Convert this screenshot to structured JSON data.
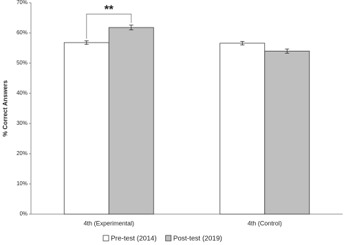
{
  "chart_data": {
    "type": "bar",
    "y_label": "% Correct Answers",
    "categories": [
      "4th (Experimental)",
      "4th (Control)"
    ],
    "series": [
      {
        "name": "Pre-test (2014)",
        "color": "#ffffff",
        "values": [
          56.8,
          56.6
        ],
        "errors": [
          0.6,
          0.6
        ]
      },
      {
        "name": "Post-test (2019)",
        "color": "#bfbfbf",
        "values": [
          61.8,
          54.0
        ],
        "errors": [
          0.8,
          0.7
        ]
      }
    ],
    "ylim": [
      0,
      70
    ],
    "yticks": [
      {
        "value": 0,
        "label": "0%"
      },
      {
        "value": 10,
        "label": "10%"
      },
      {
        "value": 20,
        "label": "20%"
      },
      {
        "value": 30,
        "label": "30%"
      },
      {
        "value": 40,
        "label": "40%"
      },
      {
        "value": 50,
        "label": "50%"
      },
      {
        "value": 60,
        "label": "60%"
      },
      {
        "value": 70,
        "label": "70%"
      }
    ],
    "grid": false,
    "legend": "bottom",
    "annotations": [
      {
        "text": "**",
        "category": 0
      }
    ]
  }
}
